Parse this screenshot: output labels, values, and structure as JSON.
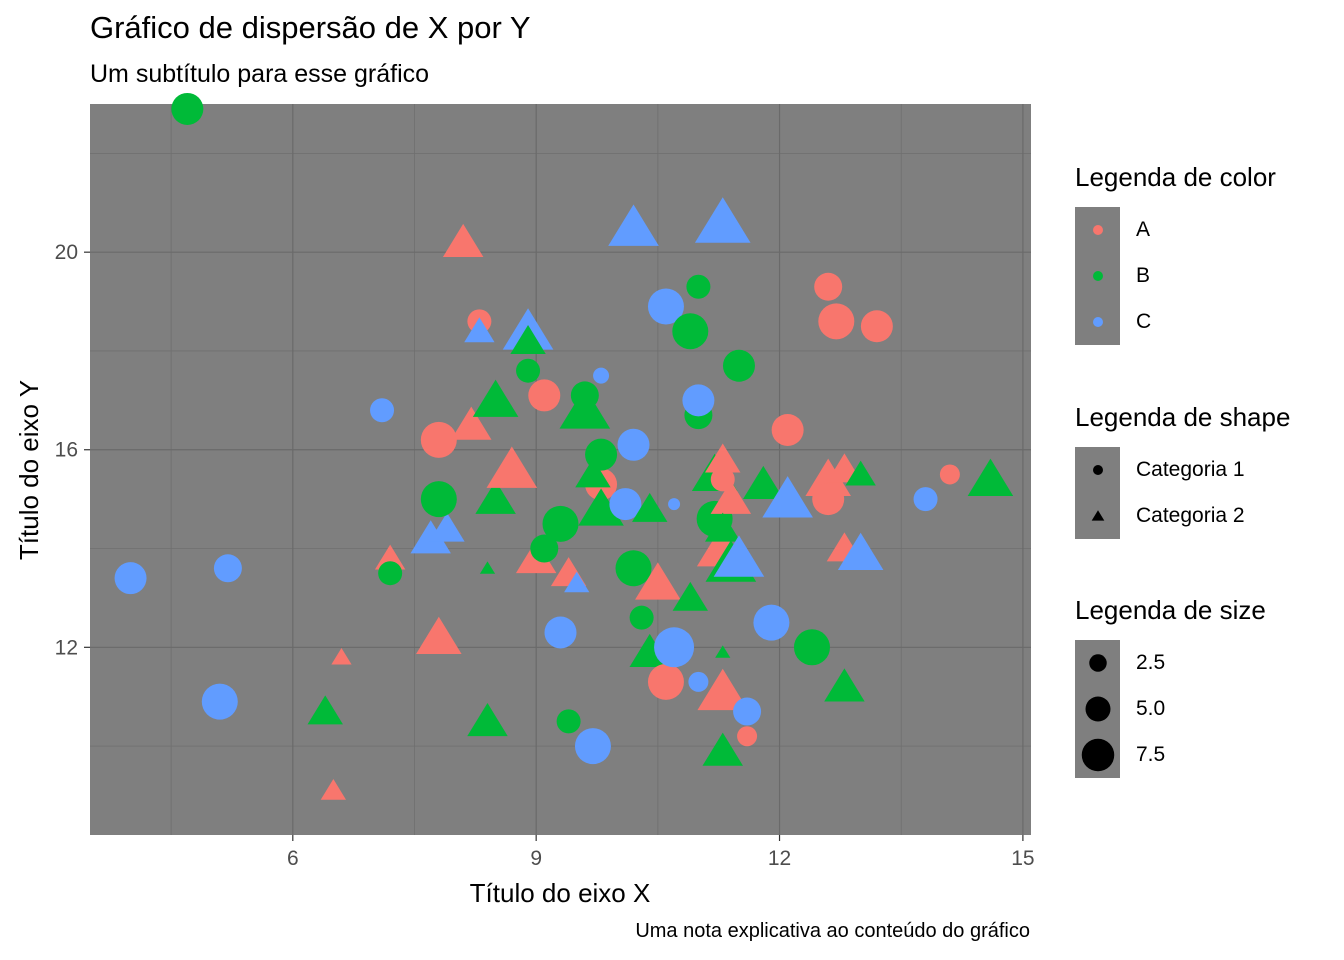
{
  "chart": {
    "title": "Gráfico de dispersão de X por Y",
    "subtitle": "Um subtítulo para esse gráfico",
    "caption": "Uma nota explicativa ao conteúdo do gráfico"
  },
  "legends": {
    "color": {
      "title": "Legenda de color",
      "items": [
        {
          "label": "A",
          "color": "#F8766D"
        },
        {
          "label": "B",
          "color": "#00BA38"
        },
        {
          "label": "C",
          "color": "#619CFF"
        }
      ]
    },
    "shape": {
      "title": "Legenda de shape",
      "items": [
        {
          "label": "Categoria 1",
          "shape": "circle"
        },
        {
          "label": "Categoria 2",
          "shape": "triangle"
        }
      ]
    },
    "size": {
      "title": "Legenda de size",
      "items": [
        {
          "label": "2.5",
          "value": 2.5
        },
        {
          "label": "5.0",
          "value": 5.0
        },
        {
          "label": "7.5",
          "value": 7.5
        }
      ]
    }
  },
  "chart_data": {
    "type": "scatter",
    "xlabel": "Título do eixo X",
    "ylabel": "Título do eixo Y",
    "xlim": [
      3.5,
      15.1
    ],
    "ylim": [
      8.2,
      23.0
    ],
    "xticks": [
      6,
      9,
      12,
      15
    ],
    "yticks": [
      12,
      16,
      20
    ],
    "grid": true,
    "panel_background": "#7f7f7f",
    "legend_position": "right",
    "points": [
      {
        "x": 4.7,
        "y": 22.9,
        "g": "B",
        "shape": "circle",
        "size": 6
      },
      {
        "x": 4.0,
        "y": 13.4,
        "g": "C",
        "shape": "circle",
        "size": 6
      },
      {
        "x": 5.2,
        "y": 13.6,
        "g": "C",
        "shape": "circle",
        "size": 5
      },
      {
        "x": 5.1,
        "y": 10.9,
        "g": "C",
        "shape": "circle",
        "size": 7
      },
      {
        "x": 6.5,
        "y": 9.1,
        "g": "A",
        "shape": "triangle",
        "size": 3
      },
      {
        "x": 6.6,
        "y": 11.8,
        "g": "A",
        "shape": "triangle",
        "size": 2
      },
      {
        "x": 6.4,
        "y": 10.7,
        "g": "B",
        "shape": "triangle",
        "size": 5
      },
      {
        "x": 7.1,
        "y": 16.8,
        "g": "C",
        "shape": "circle",
        "size": 4
      },
      {
        "x": 7.2,
        "y": 13.8,
        "g": "A",
        "shape": "triangle",
        "size": 4
      },
      {
        "x": 7.2,
        "y": 13.5,
        "g": "B",
        "shape": "circle",
        "size": 4
      },
      {
        "x": 7.7,
        "y": 14.2,
        "g": "C",
        "shape": "triangle",
        "size": 6
      },
      {
        "x": 7.9,
        "y": 14.4,
        "g": "C",
        "shape": "triangle",
        "size": 5
      },
      {
        "x": 7.8,
        "y": 16.2,
        "g": "A",
        "shape": "circle",
        "size": 7
      },
      {
        "x": 7.8,
        "y": 15.0,
        "g": "B",
        "shape": "circle",
        "size": 7
      },
      {
        "x": 7.8,
        "y": 12.2,
        "g": "A",
        "shape": "triangle",
        "size": 7
      },
      {
        "x": 8.1,
        "y": 20.2,
        "g": "A",
        "shape": "triangle",
        "size": 6
      },
      {
        "x": 8.3,
        "y": 18.6,
        "g": "A",
        "shape": "circle",
        "size": 4
      },
      {
        "x": 8.3,
        "y": 18.4,
        "g": "C",
        "shape": "triangle",
        "size": 4
      },
      {
        "x": 8.2,
        "y": 16.5,
        "g": "A",
        "shape": "triangle",
        "size": 6
      },
      {
        "x": 8.5,
        "y": 17.0,
        "g": "B",
        "shape": "triangle",
        "size": 7
      },
      {
        "x": 8.5,
        "y": 15.0,
        "g": "B",
        "shape": "triangle",
        "size": 6
      },
      {
        "x": 8.4,
        "y": 13.6,
        "g": "B",
        "shape": "triangle",
        "size": 1
      },
      {
        "x": 8.4,
        "y": 10.5,
        "g": "B",
        "shape": "triangle",
        "size": 6
      },
      {
        "x": 8.7,
        "y": 15.6,
        "g": "A",
        "shape": "triangle",
        "size": 8
      },
      {
        "x": 8.9,
        "y": 18.4,
        "g": "C",
        "shape": "triangle",
        "size": 8
      },
      {
        "x": 8.9,
        "y": 18.2,
        "g": "B",
        "shape": "triangle",
        "size": 5
      },
      {
        "x": 8.9,
        "y": 17.6,
        "g": "B",
        "shape": "circle",
        "size": 4
      },
      {
        "x": 9.1,
        "y": 17.1,
        "g": "A",
        "shape": "circle",
        "size": 6
      },
      {
        "x": 9.0,
        "y": 13.8,
        "g": "A",
        "shape": "triangle",
        "size": 6
      },
      {
        "x": 9.1,
        "y": 14.0,
        "g": "B",
        "shape": "circle",
        "size": 5
      },
      {
        "x": 9.3,
        "y": 14.5,
        "g": "B",
        "shape": "circle",
        "size": 7
      },
      {
        "x": 9.3,
        "y": 12.3,
        "g": "C",
        "shape": "circle",
        "size": 6
      },
      {
        "x": 9.4,
        "y": 13.5,
        "g": "A",
        "shape": "triangle",
        "size": 5
      },
      {
        "x": 9.5,
        "y": 13.3,
        "g": "C",
        "shape": "triangle",
        "size": 3
      },
      {
        "x": 9.4,
        "y": 10.5,
        "g": "B",
        "shape": "circle",
        "size": 4
      },
      {
        "x": 9.6,
        "y": 17.1,
        "g": "B",
        "shape": "circle",
        "size": 5
      },
      {
        "x": 9.6,
        "y": 16.8,
        "g": "B",
        "shape": "triangle",
        "size": 8
      },
      {
        "x": 9.8,
        "y": 17.5,
        "g": "C",
        "shape": "circle",
        "size": 2
      },
      {
        "x": 9.8,
        "y": 15.3,
        "g": "A",
        "shape": "circle",
        "size": 6
      },
      {
        "x": 9.7,
        "y": 15.5,
        "g": "B",
        "shape": "triangle",
        "size": 5
      },
      {
        "x": 9.8,
        "y": 15.9,
        "g": "B",
        "shape": "circle",
        "size": 6
      },
      {
        "x": 9.8,
        "y": 14.8,
        "g": "B",
        "shape": "triangle",
        "size": 7
      },
      {
        "x": 9.7,
        "y": 10.0,
        "g": "C",
        "shape": "circle",
        "size": 7
      },
      {
        "x": 10.1,
        "y": 14.9,
        "g": "C",
        "shape": "circle",
        "size": 6
      },
      {
        "x": 10.2,
        "y": 16.1,
        "g": "C",
        "shape": "circle",
        "size": 6
      },
      {
        "x": 10.2,
        "y": 13.6,
        "g": "B",
        "shape": "circle",
        "size": 7
      },
      {
        "x": 10.3,
        "y": 12.6,
        "g": "B",
        "shape": "circle",
        "size": 4
      },
      {
        "x": 10.2,
        "y": 20.5,
        "g": "C",
        "shape": "triangle",
        "size": 8
      },
      {
        "x": 10.4,
        "y": 14.8,
        "g": "B",
        "shape": "triangle",
        "size": 5
      },
      {
        "x": 10.5,
        "y": 13.3,
        "g": "A",
        "shape": "triangle",
        "size": 7
      },
      {
        "x": 10.4,
        "y": 11.9,
        "g": "B",
        "shape": "triangle",
        "size": 6
      },
      {
        "x": 10.6,
        "y": 11.3,
        "g": "A",
        "shape": "circle",
        "size": 7
      },
      {
        "x": 10.6,
        "y": 18.9,
        "g": "C",
        "shape": "circle",
        "size": 7
      },
      {
        "x": 10.7,
        "y": 14.9,
        "g": "C",
        "shape": "circle",
        "size": 1
      },
      {
        "x": 10.7,
        "y": 12.0,
        "g": "C",
        "shape": "circle",
        "size": 8
      },
      {
        "x": 10.9,
        "y": 18.4,
        "g": "B",
        "shape": "circle",
        "size": 7
      },
      {
        "x": 10.9,
        "y": 13.0,
        "g": "B",
        "shape": "triangle",
        "size": 5
      },
      {
        "x": 11.0,
        "y": 16.7,
        "g": "B",
        "shape": "circle",
        "size": 5
      },
      {
        "x": 11.0,
        "y": 17.0,
        "g": "C",
        "shape": "circle",
        "size": 6
      },
      {
        "x": 11.0,
        "y": 19.3,
        "g": "B",
        "shape": "circle",
        "size": 4
      },
      {
        "x": 11.0,
        "y": 11.3,
        "g": "C",
        "shape": "circle",
        "size": 3
      },
      {
        "x": 11.2,
        "y": 15.5,
        "g": "B",
        "shape": "triangle",
        "size": 7
      },
      {
        "x": 11.2,
        "y": 14.6,
        "g": "B",
        "shape": "circle",
        "size": 7
      },
      {
        "x": 11.3,
        "y": 15.8,
        "g": "A",
        "shape": "triangle",
        "size": 5
      },
      {
        "x": 11.3,
        "y": 15.4,
        "g": "A",
        "shape": "circle",
        "size": 4
      },
      {
        "x": 11.3,
        "y": 14.0,
        "g": "A",
        "shape": "triangle",
        "size": 6
      },
      {
        "x": 11.2,
        "y": 13.9,
        "g": "A",
        "shape": "triangle",
        "size": 5
      },
      {
        "x": 11.4,
        "y": 15.0,
        "g": "A",
        "shape": "triangle",
        "size": 6
      },
      {
        "x": 11.3,
        "y": 14.4,
        "g": "B",
        "shape": "triangle",
        "size": 5
      },
      {
        "x": 11.4,
        "y": 13.7,
        "g": "B",
        "shape": "triangle",
        "size": 8
      },
      {
        "x": 11.5,
        "y": 13.8,
        "g": "C",
        "shape": "triangle",
        "size": 8
      },
      {
        "x": 11.3,
        "y": 11.9,
        "g": "B",
        "shape": "triangle",
        "size": 1
      },
      {
        "x": 11.3,
        "y": 11.1,
        "g": "A",
        "shape": "triangle",
        "size": 8
      },
      {
        "x": 11.5,
        "y": 17.7,
        "g": "B",
        "shape": "circle",
        "size": 6
      },
      {
        "x": 11.3,
        "y": 20.6,
        "g": "C",
        "shape": "triangle",
        "size": 9
      },
      {
        "x": 11.6,
        "y": 10.7,
        "g": "C",
        "shape": "circle",
        "size": 5
      },
      {
        "x": 11.3,
        "y": 9.9,
        "g": "B",
        "shape": "triangle",
        "size": 6
      },
      {
        "x": 11.6,
        "y": 10.2,
        "g": "A",
        "shape": "circle",
        "size": 3
      },
      {
        "x": 11.8,
        "y": 15.3,
        "g": "B",
        "shape": "triangle",
        "size": 6
      },
      {
        "x": 11.9,
        "y": 12.5,
        "g": "C",
        "shape": "circle",
        "size": 7
      },
      {
        "x": 12.1,
        "y": 16.4,
        "g": "A",
        "shape": "circle",
        "size": 6
      },
      {
        "x": 12.1,
        "y": 15.0,
        "g": "C",
        "shape": "triangle",
        "size": 8
      },
      {
        "x": 12.4,
        "y": 12.0,
        "g": "B",
        "shape": "circle",
        "size": 7
      },
      {
        "x": 12.6,
        "y": 19.3,
        "g": "A",
        "shape": "circle",
        "size": 5
      },
      {
        "x": 12.6,
        "y": 15.4,
        "g": "A",
        "shape": "triangle",
        "size": 7
      },
      {
        "x": 12.6,
        "y": 15.0,
        "g": "A",
        "shape": "circle",
        "size": 6
      },
      {
        "x": 12.7,
        "y": 18.6,
        "g": "A",
        "shape": "circle",
        "size": 7
      },
      {
        "x": 12.8,
        "y": 15.6,
        "g": "A",
        "shape": "triangle",
        "size": 5
      },
      {
        "x": 12.8,
        "y": 14.0,
        "g": "A",
        "shape": "triangle",
        "size": 5
      },
      {
        "x": 12.8,
        "y": 11.2,
        "g": "B",
        "shape": "triangle",
        "size": 6
      },
      {
        "x": 13.0,
        "y": 13.9,
        "g": "C",
        "shape": "triangle",
        "size": 7
      },
      {
        "x": 13.0,
        "y": 15.5,
        "g": "B",
        "shape": "triangle",
        "size": 4
      },
      {
        "x": 13.2,
        "y": 18.5,
        "g": "A",
        "shape": "circle",
        "size": 6
      },
      {
        "x": 13.8,
        "y": 15.0,
        "g": "C",
        "shape": "circle",
        "size": 4
      },
      {
        "x": 14.1,
        "y": 15.5,
        "g": "A",
        "shape": "circle",
        "size": 3
      },
      {
        "x": 14.6,
        "y": 15.4,
        "g": "B",
        "shape": "triangle",
        "size": 7
      }
    ]
  }
}
